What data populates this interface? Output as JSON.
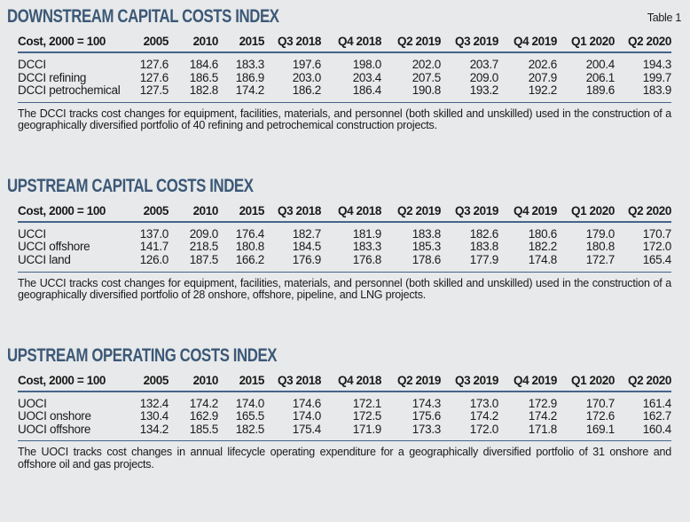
{
  "page": {
    "table_label": "Table 1",
    "background_color": "#e7e9ea",
    "accent_color": "#3c5877",
    "rule_color": "#46648a",
    "text_color": "#1a1a1a"
  },
  "sections": [
    {
      "title": "DOWNSTREAM CAPITAL COSTS INDEX",
      "header": [
        "Cost, 2000 = 100",
        "2005",
        "2010",
        "2015",
        "Q3 2018",
        "Q4 2018",
        "Q2 2019",
        "Q3 2019",
        "Q4 2019",
        "Q1 2020",
        "Q2 2020"
      ],
      "rows": [
        {
          "label": "DCCI",
          "values": [
            "127.6",
            "184.6",
            "183.3",
            "197.6",
            "198.0",
            "202.0",
            "203.7",
            "202.6",
            "200.4",
            "194.3"
          ]
        },
        {
          "label": "DCCI refining",
          "values": [
            "127.6",
            "186.5",
            "186.9",
            "203.0",
            "203.4",
            "207.5",
            "209.0",
            "207.9",
            "206.1",
            "199.7"
          ]
        },
        {
          "label": "DCCI petrochemical",
          "values": [
            "127.5",
            "182.8",
            "174.2",
            "186.2",
            "186.4",
            "190.8",
            "193.2",
            "192.2",
            "189.6",
            "183.9"
          ]
        }
      ],
      "footnote": "The DCCI tracks cost changes for equipment, facilities, materials, and personnel (both skilled and unskilled) used in the construction of a geographically diversified portfolio of 40 refining and petrochemical construction projects."
    },
    {
      "title": "UPSTREAM CAPITAL COSTS INDEX",
      "header": [
        "Cost, 2000 = 100",
        "2005",
        "2010",
        "2015",
        "Q3 2018",
        "Q4 2018",
        "Q2 2019",
        "Q3 2019",
        "Q4 2019",
        "Q1 2020",
        "Q2 2020"
      ],
      "rows": [
        {
          "label": "UCCI",
          "values": [
            "137.0",
            "209.0",
            "176.4",
            "182.7",
            "181.9",
            "183.8",
            "182.6",
            "180.6",
            "179.0",
            "170.7"
          ]
        },
        {
          "label": "UCCI offshore",
          "values": [
            "141.7",
            "218.5",
            "180.8",
            "184.5",
            "183.3",
            "185.3",
            "183.8",
            "182.2",
            "180.8",
            "172.0"
          ]
        },
        {
          "label": "UCCI land",
          "values": [
            "126.0",
            "187.5",
            "166.2",
            "176.9",
            "176.8",
            "178.6",
            "177.9",
            "174.8",
            "172.7",
            "165.4"
          ]
        }
      ],
      "footnote": "The UCCI tracks cost changes for equipment, facilities, materials, and personnel (both skilled and unskilled) used in the construction of a geographically diversified portfolio of 28 onshore, offshore, pipeline, and LNG projects."
    },
    {
      "title": "UPSTREAM OPERATING COSTS INDEX",
      "header": [
        "Cost, 2000 = 100",
        "2005",
        "2010",
        "2015",
        "Q3 2018",
        "Q4 2018",
        "Q2 2019",
        "Q3 2019",
        "Q4 2019",
        "Q1 2020",
        "Q2 2020"
      ],
      "rows": [
        {
          "label": "UOCI",
          "values": [
            "132.4",
            "174.2",
            "174.0",
            "174.6",
            "172.1",
            "174.3",
            "173.0",
            "172.9",
            "170.7",
            "161.4"
          ]
        },
        {
          "label": "UOCI onshore",
          "values": [
            "130.4",
            "162.9",
            "165.5",
            "174.0",
            "172.5",
            "175.6",
            "174.2",
            "174.2",
            "172.6",
            "162.7"
          ]
        },
        {
          "label": "UOCI offshore",
          "values": [
            "134.2",
            "185.5",
            "182.5",
            "175.4",
            "171.9",
            "173.3",
            "172.0",
            "171.8",
            "169.1",
            "160.4"
          ]
        }
      ],
      "footnote": "The UOCI tracks cost changes in annual lifecycle operating expenditure for a geographically diversified portfolio of 31 onshore and offshore oil and gas projects."
    }
  ]
}
